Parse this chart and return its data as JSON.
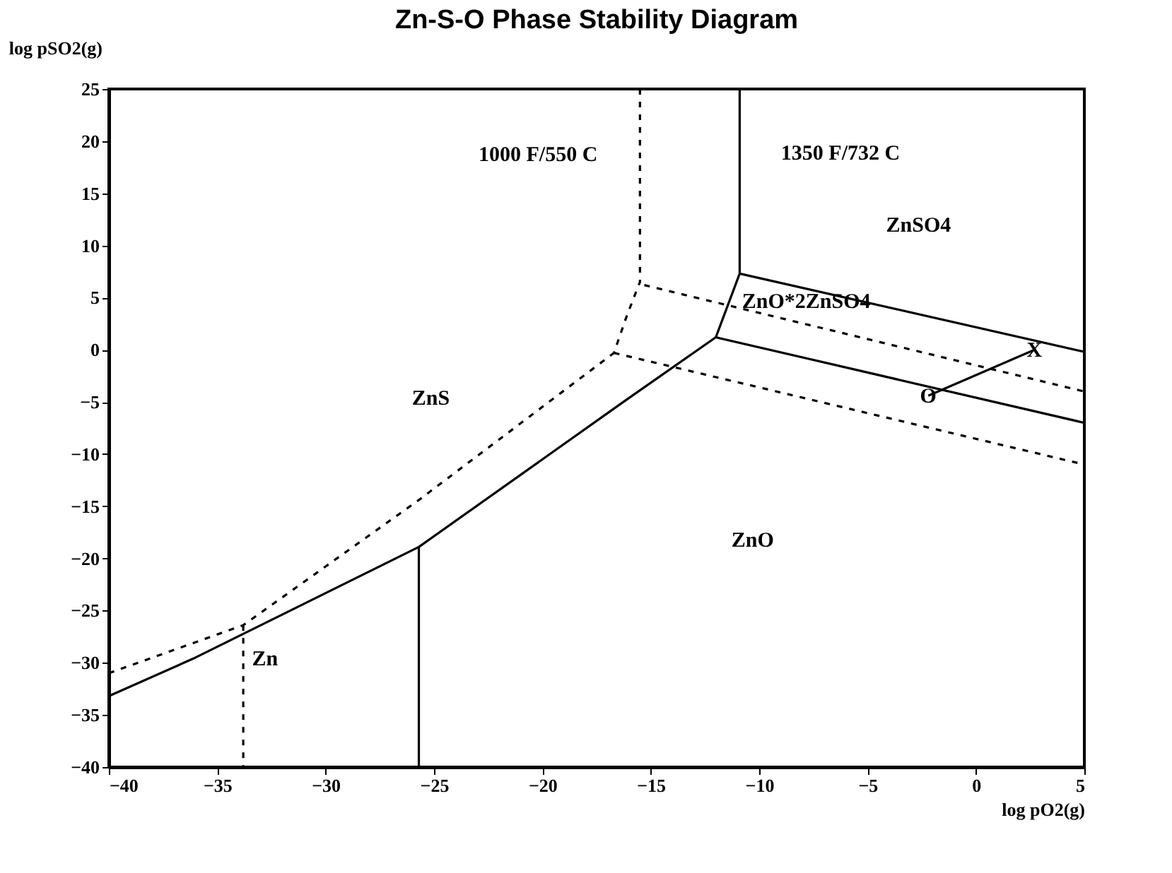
{
  "chart_data": {
    "type": "line",
    "title": "Zn-S-O Phase Stability Diagram",
    "xlabel": "log pO2(g)",
    "ylabel": "log pSO2(g)",
    "xlim": [
      -40,
      5
    ],
    "xticks": [
      -40,
      -35,
      -30,
      -25,
      -20,
      -15,
      -10,
      -5,
      0,
      5
    ],
    "ylim": [
      -40,
      25
    ],
    "yticks": [
      -40,
      -35,
      -30,
      -25,
      -20,
      -15,
      -10,
      -5,
      0,
      5,
      10,
      15,
      20,
      25
    ],
    "grid": false,
    "marker": "none",
    "series": [
      {
        "color": "#000000",
        "line_style": "solid",
        "x": [
          -40,
          -36.0,
          -25.7,
          -16.2,
          -12.0
        ],
        "values": [
          -33.2,
          -29.5,
          -18.9,
          -4.9,
          1.2
        ]
      },
      {
        "color": "#000000",
        "line_style": "solid",
        "x": [
          -25.7,
          -25.7
        ],
        "values": [
          -18.9,
          -40
        ]
      },
      {
        "color": "#000000",
        "line_style": "solid",
        "x": [
          -12.0,
          -10.9,
          -10.9
        ],
        "values": [
          1.2,
          7.3,
          25
        ]
      },
      {
        "color": "#000000",
        "line_style": "solid",
        "x": [
          -10.9,
          5
        ],
        "values": [
          7.3,
          -0.2
        ]
      },
      {
        "color": "#000000",
        "line_style": "solid",
        "x": [
          -12.0,
          5
        ],
        "values": [
          1.2,
          -7.0
        ]
      },
      {
        "color": "#000000",
        "line_style": "solid",
        "x": [
          -2.2,
          2.7
        ],
        "values": [
          -4.4,
          0.0
        ]
      },
      {
        "color": "#000000",
        "line_style": "dashed",
        "x": [
          -40,
          -33.8,
          -25.7,
          -16.7
        ],
        "values": [
          -31.0,
          -26.4,
          -14.4,
          -0.3
        ]
      },
      {
        "color": "#000000",
        "line_style": "dashed",
        "x": [
          -15.5,
          -15.5,
          -16.1,
          -16.7
        ],
        "values": [
          25,
          6.5,
          3.3,
          -0.3
        ]
      },
      {
        "color": "#000000",
        "line_style": "dashed",
        "x": [
          -15.3,
          5
        ],
        "values": [
          6.2,
          -4.0
        ]
      },
      {
        "color": "#000000",
        "line_style": "dashed",
        "x": [
          -16.7,
          5
        ],
        "values": [
          -0.3,
          -11.0
        ]
      },
      {
        "color": "#000000",
        "line_style": "dashed",
        "x": [
          -33.8,
          -33.8
        ],
        "values": [
          -26.4,
          -40
        ]
      }
    ],
    "annotations": [
      "1000 F/550 C",
      "1350 F/732 C",
      "ZnSO4",
      "ZnO*2ZnSO4",
      "ZnS",
      "ZnO",
      "Zn",
      {
        "text": "O",
        "x": -2.2,
        "y": -4.4
      },
      {
        "text": "X",
        "x": 2.7,
        "y": 0.0
      }
    ]
  }
}
